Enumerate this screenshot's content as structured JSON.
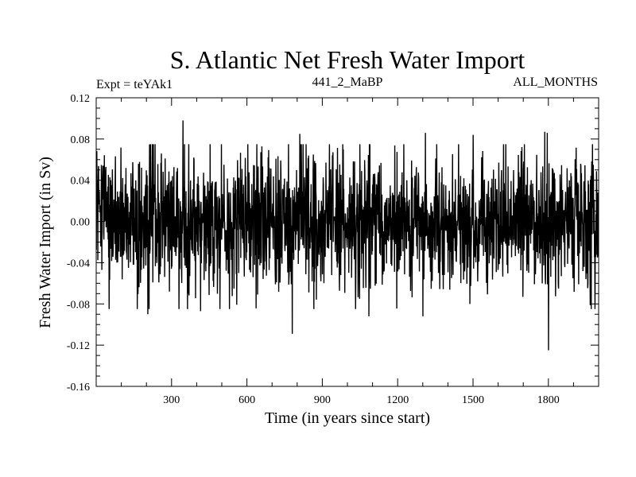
{
  "chart_data": {
    "type": "line",
    "title": "S. Atlantic Net Fresh Water Import",
    "subtitle_left": "Expt = teYAk1",
    "subtitle_center": "441_2_MaBP",
    "subtitle_right": "ALL_MONTHS",
    "xlabel": "Time (in years since start)",
    "ylabel": "Fresh Water Import (in Sv)",
    "xlim": [
      0,
      2000
    ],
    "ylim": [
      -0.16,
      0.12
    ],
    "x_ticks": [
      300,
      600,
      900,
      1200,
      1500,
      1800
    ],
    "x_tick_labels": [
      "300",
      "600",
      "900",
      "1200",
      "1500",
      "1800"
    ],
    "y_ticks": [
      -0.16,
      -0.12,
      -0.08,
      -0.04,
      0.0,
      0.04,
      0.08,
      0.12
    ],
    "y_tick_labels": [
      "-0.16",
      "-0.12",
      "-0.08",
      "-0.04",
      "0.00",
      "0.04",
      "0.08",
      "0.12"
    ],
    "grid": false,
    "series": [
      {
        "name": "Net fresh water import",
        "n_points": 2000,
        "mean": 0.0,
        "std": 0.032,
        "extremes": [
          {
            "x": 8,
            "y": 0.05
          },
          {
            "x": 345,
            "y": 0.098
          },
          {
            "x": 365,
            "y": -0.07
          },
          {
            "x": 205,
            "y": -0.09
          },
          {
            "x": 415,
            "y": -0.087
          },
          {
            "x": 780,
            "y": -0.109
          },
          {
            "x": 810,
            "y": 0.085
          },
          {
            "x": 1085,
            "y": -0.092
          },
          {
            "x": 1300,
            "y": -0.092
          },
          {
            "x": 1310,
            "y": 0.086
          },
          {
            "x": 1500,
            "y": 0.084
          },
          {
            "x": 1800,
            "y": -0.125
          },
          {
            "x": 1785,
            "y": 0.087
          },
          {
            "x": 1795,
            "y": 0.086
          }
        ]
      }
    ]
  }
}
